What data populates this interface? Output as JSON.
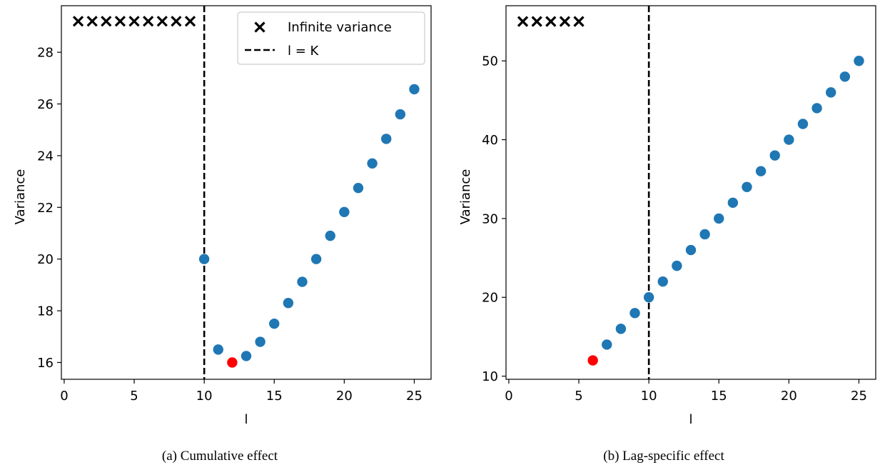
{
  "chart_data": [
    {
      "type": "scatter",
      "caption": "(a) Cumulative effect",
      "xlabel": "l",
      "ylabel": "Variance",
      "xlim": [
        -0.2,
        26.2
      ],
      "ylim": [
        15.35,
        29.8
      ],
      "xticks": [
        0,
        5,
        10,
        15,
        20,
        25
      ],
      "yticks": [
        16,
        18,
        20,
        22,
        24,
        26,
        28
      ],
      "grid": false,
      "legend_position": "top-right",
      "legend": [
        {
          "label": "Infinite variance",
          "marker": "x"
        },
        {
          "label": "l = K",
          "marker": "dashed-line"
        }
      ],
      "vline": {
        "x": 10,
        "label": "l = K"
      },
      "infinite_variance": {
        "x": [
          1,
          2,
          3,
          4,
          5,
          6,
          7,
          8,
          9
        ],
        "y_marker": 29.2
      },
      "series": [
        {
          "x": [
            10,
            11,
            13,
            14,
            15,
            16,
            17,
            18,
            19,
            20,
            21,
            22,
            23,
            24,
            25
          ],
          "y": [
            20.0,
            16.5,
            16.25,
            16.8,
            17.5,
            18.3,
            19.12,
            20.0,
            20.9,
            21.82,
            22.75,
            23.7,
            24.65,
            25.6,
            26.57
          ],
          "color": "#1f77b4"
        },
        {
          "x": [
            12
          ],
          "y": [
            16.0
          ],
          "color": "#ff0000"
        }
      ]
    },
    {
      "type": "scatter",
      "caption": "(b) Lag-specific effect",
      "xlabel": "l",
      "ylabel": "Variance",
      "xlim": [
        -0.2,
        26.2
      ],
      "ylim": [
        9.6,
        57.0
      ],
      "xticks": [
        0,
        5,
        10,
        15,
        20,
        25
      ],
      "yticks": [
        10,
        20,
        30,
        40,
        50
      ],
      "grid": false,
      "vline": {
        "x": 10
      },
      "infinite_variance": {
        "x": [
          1,
          2,
          3,
          4,
          5
        ],
        "y_marker": 55.0
      },
      "series": [
        {
          "x": [
            7,
            8,
            9,
            10,
            11,
            12,
            13,
            14,
            15,
            16,
            17,
            18,
            19,
            20,
            21,
            22,
            23,
            24,
            25
          ],
          "y": [
            14,
            16,
            18,
            20,
            22,
            24,
            26,
            28,
            30,
            32,
            34,
            36,
            38,
            40,
            42,
            44,
            46,
            48,
            50
          ],
          "color": "#1f77b4"
        },
        {
          "x": [
            6
          ],
          "y": [
            12
          ],
          "color": "#ff0000"
        }
      ]
    }
  ]
}
